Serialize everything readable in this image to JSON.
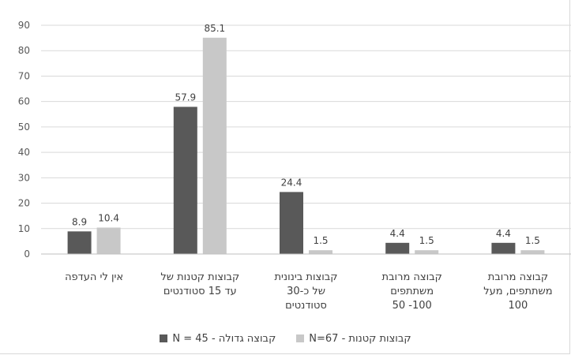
{
  "chart_data": {
    "type": "bar",
    "title": "",
    "xlabel": "",
    "ylabel": "",
    "ylim": [
      0,
      90
    ],
    "yticks": [
      0,
      10,
      20,
      30,
      40,
      50,
      60,
      70,
      80,
      90
    ],
    "grid": true,
    "legend_position": "bottom",
    "categories": [
      [
        "אין לי העדפה"
      ],
      [
        "קבוצות קטנות של",
        "עד 15 סטודנטים"
      ],
      [
        "קבוצות בינונית",
        "של כ-30",
        "סטודנטים"
      ],
      [
        "קבוצה מרובת",
        "משתתפים",
        "100- 50"
      ],
      [
        "קבוצה מרובת",
        "משתתפים, מעל",
        "100"
      ]
    ],
    "series": [
      {
        "name": "קבוצה גדולה - N = 45",
        "color": "#595959",
        "values": [
          8.9,
          57.9,
          24.4,
          4.4,
          4.4
        ]
      },
      {
        "name": "קבוצות קטנות - N=67",
        "color": "#c8c8c8",
        "values": [
          10.4,
          85.1,
          1.5,
          1.5,
          1.5
        ]
      }
    ]
  }
}
